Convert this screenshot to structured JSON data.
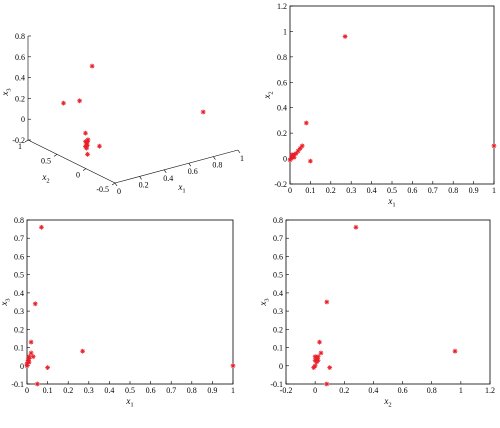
{
  "chart_data": [
    {
      "type": "scatter3d",
      "xlabel": "x1",
      "ylabel": "x2",
      "zlabel": "x3",
      "x_ticks": [
        "0",
        "0.2",
        "0.4",
        "0.6",
        "0.8",
        "1"
      ],
      "y_ticks": [
        "-0.5",
        "0",
        "0.5",
        "1"
      ],
      "z_ticks": [
        "-0.2",
        "0",
        "0.2",
        "0.4",
        "0.6",
        "0.8"
      ],
      "xlim": [
        0,
        1
      ],
      "ylim": [
        -0.5,
        1
      ],
      "zlim": [
        -0.2,
        0.8
      ],
      "marker_color": "#e8202a",
      "points": [
        {
          "x": 0.27,
          "y": 0.96,
          "z": 0.08
        },
        {
          "x": 1.0,
          "y": 0.1,
          "z": 0.0
        },
        {
          "x": 0.05,
          "y": 0.0,
          "z": 0.77
        },
        {
          "x": 0.08,
          "y": 0.28,
          "z": 0.35
        },
        {
          "x": 0.1,
          "y": -0.02,
          "z": -0.01
        },
        {
          "x": 0.03,
          "y": 0.03,
          "z": 0.06
        },
        {
          "x": 0.02,
          "y": 0.02,
          "z": 0.05
        },
        {
          "x": 0.01,
          "y": 0.01,
          "z": 0.03
        },
        {
          "x": 0.01,
          "y": 0.0,
          "z": 0.02
        },
        {
          "x": 0.0,
          "y": 0.01,
          "z": 0.01
        },
        {
          "x": 0.02,
          "y": 0.05,
          "z": 0.04
        },
        {
          "x": 0.04,
          "y": 0.06,
          "z": 0.03
        },
        {
          "x": 0.0,
          "y": -0.01,
          "z": 0.0
        },
        {
          "x": 0.01,
          "y": 0.03,
          "z": 0.13
        },
        {
          "x": 0.05,
          "y": 0.08,
          "z": -0.1
        }
      ]
    },
    {
      "type": "scatter",
      "xlabel": "x1",
      "ylabel": "x2",
      "xlim": [
        0,
        1
      ],
      "ylim": [
        -0.2,
        1.2
      ],
      "x_ticks": [
        "0",
        "0.1",
        "0.2",
        "0.3",
        "0.4",
        "0.5",
        "0.6",
        "0.7",
        "0.8",
        "0.9",
        "1"
      ],
      "y_ticks": [
        "-0.2",
        "0",
        "0.2",
        "0.4",
        "0.6",
        "0.8",
        "1",
        "1.2"
      ],
      "marker_color": "#e8202a",
      "points": [
        {
          "x": 0.27,
          "y": 0.96
        },
        {
          "x": 1.0,
          "y": 0.1
        },
        {
          "x": 0.08,
          "y": 0.28
        },
        {
          "x": 0.1,
          "y": -0.02
        },
        {
          "x": 0.06,
          "y": 0.1
        },
        {
          "x": 0.05,
          "y": 0.08
        },
        {
          "x": 0.04,
          "y": 0.06
        },
        {
          "x": 0.03,
          "y": 0.04
        },
        {
          "x": 0.02,
          "y": 0.03
        },
        {
          "x": 0.015,
          "y": 0.02
        },
        {
          "x": 0.01,
          "y": 0.01
        },
        {
          "x": 0.005,
          "y": 0.0
        },
        {
          "x": 0.0,
          "y": -0.01
        },
        {
          "x": 0.02,
          "y": 0.01
        },
        {
          "x": 0.01,
          "y": 0.03
        }
      ]
    },
    {
      "type": "scatter",
      "xlabel": "x1",
      "ylabel": "x3",
      "xlim": [
        0,
        1
      ],
      "ylim": [
        -0.1,
        0.8
      ],
      "x_ticks": [
        "0",
        "0.1",
        "0.2",
        "0.3",
        "0.4",
        "0.5",
        "0.6",
        "0.7",
        "0.8",
        "0.9",
        "1"
      ],
      "y_ticks": [
        "-0.1",
        "0",
        "0.1",
        "0.2",
        "0.3",
        "0.4",
        "0.5",
        "0.6",
        "0.7",
        "0.8"
      ],
      "marker_color": "#e8202a",
      "points": [
        {
          "x": 0.07,
          "y": 0.76
        },
        {
          "x": 0.04,
          "y": 0.34
        },
        {
          "x": 0.27,
          "y": 0.08
        },
        {
          "x": 0.1,
          "y": -0.01
        },
        {
          "x": 0.05,
          "y": -0.1
        },
        {
          "x": 1.0,
          "y": 0.0
        },
        {
          "x": 0.02,
          "y": 0.13
        },
        {
          "x": 0.02,
          "y": 0.07
        },
        {
          "x": 0.03,
          "y": 0.05
        },
        {
          "x": 0.01,
          "y": 0.05
        },
        {
          "x": 0.01,
          "y": 0.04
        },
        {
          "x": 0.005,
          "y": 0.03
        },
        {
          "x": 0.005,
          "y": 0.02
        },
        {
          "x": 0.0,
          "y": 0.01
        },
        {
          "x": 0.0,
          "y": 0.0
        },
        {
          "x": 0.01,
          "y": 0.02
        }
      ]
    },
    {
      "type": "scatter",
      "xlabel": "x2",
      "ylabel": "x3",
      "xlim": [
        -0.2,
        1.2
      ],
      "ylim": [
        -0.1,
        0.8
      ],
      "x_ticks": [
        "-0.2",
        "0",
        "0.2",
        "0.4",
        "0.6",
        "0.8",
        "1",
        "1.2"
      ],
      "y_ticks": [
        "-0.1",
        "0",
        "0.1",
        "0.2",
        "0.3",
        "0.4",
        "0.5",
        "0.6",
        "0.7",
        "0.8"
      ],
      "marker_color": "#e8202a",
      "points": [
        {
          "x": 0.28,
          "y": 0.76
        },
        {
          "x": 0.08,
          "y": 0.35
        },
        {
          "x": 0.96,
          "y": 0.08
        },
        {
          "x": 0.1,
          "y": -0.01
        },
        {
          "x": 0.08,
          "y": -0.1
        },
        {
          "x": 0.03,
          "y": 0.13
        },
        {
          "x": 0.04,
          "y": 0.07
        },
        {
          "x": 0.02,
          "y": 0.05
        },
        {
          "x": 0.01,
          "y": 0.04
        },
        {
          "x": 0.0,
          "y": 0.03
        },
        {
          "x": 0.01,
          "y": 0.02
        },
        {
          "x": 0.0,
          "y": 0.0
        },
        {
          "x": -0.01,
          "y": -0.01
        },
        {
          "x": 0.02,
          "y": 0.03
        },
        {
          "x": 0.0,
          "y": 0.05
        }
      ]
    }
  ]
}
